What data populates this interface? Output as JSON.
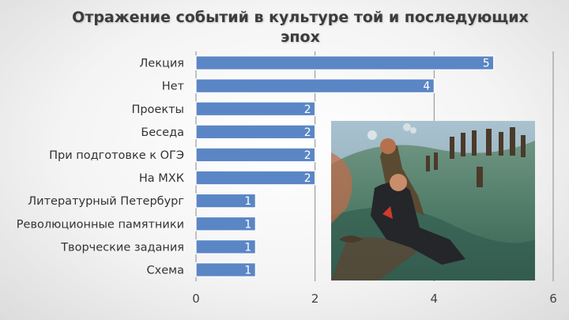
{
  "chart_data": {
    "type": "bar",
    "orientation": "horizontal",
    "title": "Отражение событий в культуре той и последующих эпох",
    "categories": [
      "Лекция",
      "Нет",
      "Проекты",
      "Беседа",
      "При подготовке к ОГЭ",
      "На МХК",
      "Литературный Петербург",
      "Революционные памятники",
      "Творческие задания",
      "Схема"
    ],
    "values": [
      5,
      4,
      2,
      2,
      2,
      2,
      1,
      1,
      1,
      1
    ],
    "xlim": [
      0,
      6
    ],
    "xticks": [
      "0",
      "2",
      "4",
      "6"
    ],
    "grid": true,
    "bar_color": "#5b86c5",
    "data_labels": true
  },
  "colors": {
    "bar": "#5b86c5",
    "bar_border": "#ffffff",
    "title": "#3c3c3c",
    "grid": "#8c8c8c"
  }
}
